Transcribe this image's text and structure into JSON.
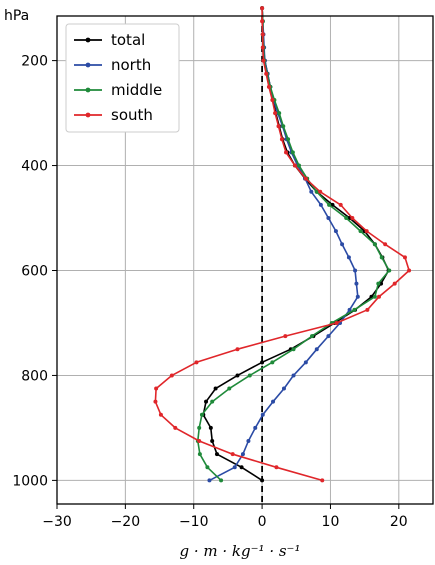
{
  "chart_data": {
    "type": "line",
    "title": "",
    "ylabel_unit": "hPa",
    "xlabel": "g · m · kg⁻¹ · s⁻¹",
    "xlim": [
      -30,
      25
    ],
    "ylim": [
      1045,
      115
    ],
    "y_inverted": true,
    "xticks": [
      -30,
      -20,
      -10,
      0,
      10,
      20
    ],
    "xtick_labels": [
      "−30",
      "−20",
      "−10",
      "0",
      "10",
      "20"
    ],
    "yticks": [
      200,
      400,
      600,
      800,
      1000
    ],
    "ytick_labels": [
      "200",
      "400",
      "600",
      "800",
      "1000"
    ],
    "grid": true,
    "zero_line": {
      "x": 0,
      "style": "dashed",
      "color": "#000000"
    },
    "legend_position": "upper-left",
    "series": [
      {
        "name": "total",
        "color": "#000000",
        "points": [
          [
            0,
            100
          ],
          [
            0.1,
            125
          ],
          [
            0.1,
            150
          ],
          [
            0.2,
            175
          ],
          [
            0.4,
            200
          ],
          [
            0.8,
            225
          ],
          [
            1.2,
            250
          ],
          [
            1.6,
            275
          ],
          [
            2,
            300
          ],
          [
            2.5,
            325
          ],
          [
            3,
            350
          ],
          [
            3.7,
            375
          ],
          [
            4.8,
            400
          ],
          [
            6.3,
            425
          ],
          [
            8,
            450
          ],
          [
            10.3,
            475
          ],
          [
            12.8,
            500
          ],
          [
            15,
            525
          ],
          [
            16.5,
            550
          ],
          [
            17.6,
            575
          ],
          [
            18.5,
            600
          ],
          [
            17.4,
            625
          ],
          [
            16,
            650
          ],
          [
            13.6,
            675
          ],
          [
            10.6,
            700
          ],
          [
            7.5,
            725
          ],
          [
            4.2,
            750
          ],
          [
            0,
            775
          ],
          [
            -3.6,
            800
          ],
          [
            -6.8,
            825
          ],
          [
            -8.2,
            850
          ],
          [
            -8.6,
            875
          ],
          [
            -7.5,
            900
          ],
          [
            -7.3,
            925
          ],
          [
            -6.6,
            950
          ],
          [
            -3,
            975
          ],
          [
            0,
            1000
          ]
        ]
      },
      {
        "name": "north",
        "color": "#2b4ba5",
        "points": [
          [
            0,
            100
          ],
          [
            0.1,
            125
          ],
          [
            0.2,
            150
          ],
          [
            0.3,
            175
          ],
          [
            0.4,
            200
          ],
          [
            0.8,
            225
          ],
          [
            1.2,
            250
          ],
          [
            1.7,
            275
          ],
          [
            2.3,
            300
          ],
          [
            3,
            325
          ],
          [
            3.6,
            350
          ],
          [
            4.3,
            375
          ],
          [
            5.2,
            400
          ],
          [
            6.3,
            425
          ],
          [
            7.2,
            450
          ],
          [
            8.6,
            475
          ],
          [
            9.7,
            500
          ],
          [
            10.8,
            525
          ],
          [
            11.7,
            550
          ],
          [
            12.7,
            575
          ],
          [
            13.6,
            600
          ],
          [
            13.8,
            625
          ],
          [
            14,
            650
          ],
          [
            12.8,
            675
          ],
          [
            11.4,
            700
          ],
          [
            9.7,
            725
          ],
          [
            8,
            750
          ],
          [
            6.4,
            775
          ],
          [
            4.6,
            800
          ],
          [
            3.2,
            825
          ],
          [
            1.6,
            850
          ],
          [
            0.1,
            875
          ],
          [
            -1,
            900
          ],
          [
            -2,
            925
          ],
          [
            -2.8,
            950
          ],
          [
            -4,
            975
          ],
          [
            -7.7,
            1000
          ]
        ]
      },
      {
        "name": "middle",
        "color": "#1f8a3a",
        "points": [
          [
            0,
            100
          ],
          [
            0.1,
            125
          ],
          [
            0.1,
            150
          ],
          [
            0.2,
            175
          ],
          [
            0.3,
            200
          ],
          [
            0.7,
            225
          ],
          [
            1.2,
            250
          ],
          [
            1.8,
            275
          ],
          [
            2.5,
            300
          ],
          [
            3.1,
            325
          ],
          [
            3.8,
            350
          ],
          [
            4.5,
            375
          ],
          [
            5.4,
            400
          ],
          [
            6.6,
            425
          ],
          [
            8,
            450
          ],
          [
            9.8,
            475
          ],
          [
            12.3,
            500
          ],
          [
            14.4,
            525
          ],
          [
            16.5,
            550
          ],
          [
            17.5,
            575
          ],
          [
            18.6,
            600
          ],
          [
            17,
            625
          ],
          [
            16.5,
            650
          ],
          [
            13.5,
            675
          ],
          [
            10.2,
            700
          ],
          [
            7.3,
            725
          ],
          [
            4.6,
            750
          ],
          [
            1.5,
            775
          ],
          [
            -1.8,
            800
          ],
          [
            -4.8,
            825
          ],
          [
            -7.3,
            850
          ],
          [
            -8.8,
            875
          ],
          [
            -9.2,
            900
          ],
          [
            -9.4,
            925
          ],
          [
            -9.1,
            950
          ],
          [
            -8,
            975
          ],
          [
            -6,
            1000
          ]
        ]
      },
      {
        "name": "south",
        "color": "#e0262a",
        "points": [
          [
            0,
            100
          ],
          [
            0,
            125
          ],
          [
            0.1,
            150
          ],
          [
            0.1,
            175
          ],
          [
            0.2,
            200
          ],
          [
            0.6,
            225
          ],
          [
            1,
            250
          ],
          [
            1.5,
            275
          ],
          [
            1.9,
            300
          ],
          [
            2.4,
            325
          ],
          [
            2.9,
            350
          ],
          [
            3.5,
            375
          ],
          [
            4.8,
            400
          ],
          [
            6.4,
            425
          ],
          [
            8.5,
            450
          ],
          [
            11.5,
            475
          ],
          [
            13.2,
            500
          ],
          [
            15.3,
            525
          ],
          [
            18,
            550
          ],
          [
            20.9,
            575
          ],
          [
            21.5,
            600
          ],
          [
            19.4,
            625
          ],
          [
            17.1,
            650
          ],
          [
            15.4,
            675
          ],
          [
            10.9,
            700
          ],
          [
            3.4,
            725
          ],
          [
            -3.6,
            750
          ],
          [
            -9.6,
            775
          ],
          [
            -13.2,
            800
          ],
          [
            -15.5,
            825
          ],
          [
            -15.6,
            850
          ],
          [
            -14.8,
            875
          ],
          [
            -12.7,
            900
          ],
          [
            -9.2,
            925
          ],
          [
            -4.3,
            950
          ],
          [
            2.1,
            975
          ],
          [
            8.8,
            1000
          ]
        ]
      }
    ]
  }
}
